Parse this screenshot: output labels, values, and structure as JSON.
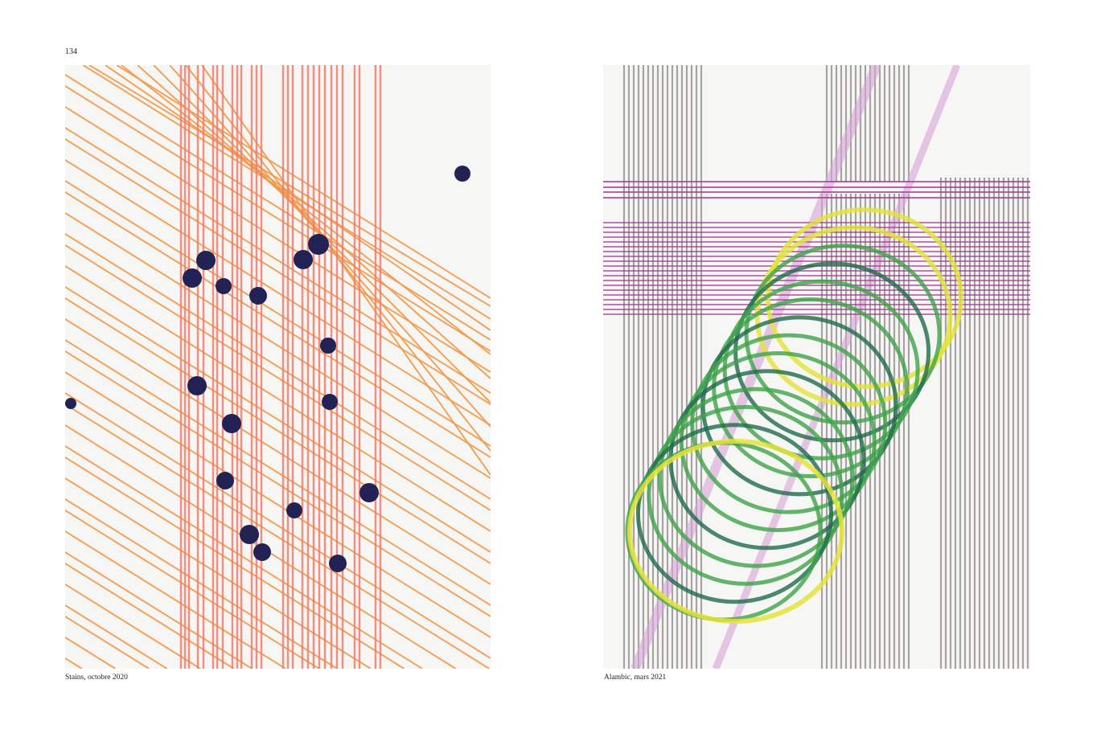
{
  "page_number": "134",
  "left_plate": {
    "caption": "Stains, octobre 2020",
    "colors": {
      "vertical_lines": "#ee7f6f",
      "diagonal_lines": "#f39a4a",
      "dots": "#232255"
    }
  },
  "right_plate": {
    "caption": "Alambic, mars 2021",
    "colors": {
      "grey_lines": "#9a9595",
      "purple_lines": "#a2348f",
      "yellow_rings": "#e4e33a",
      "green_rings": "#3fa24a",
      "dark_green_rings": "#1f6b4a",
      "pink_diagonal": "#d7a6d8"
    }
  }
}
